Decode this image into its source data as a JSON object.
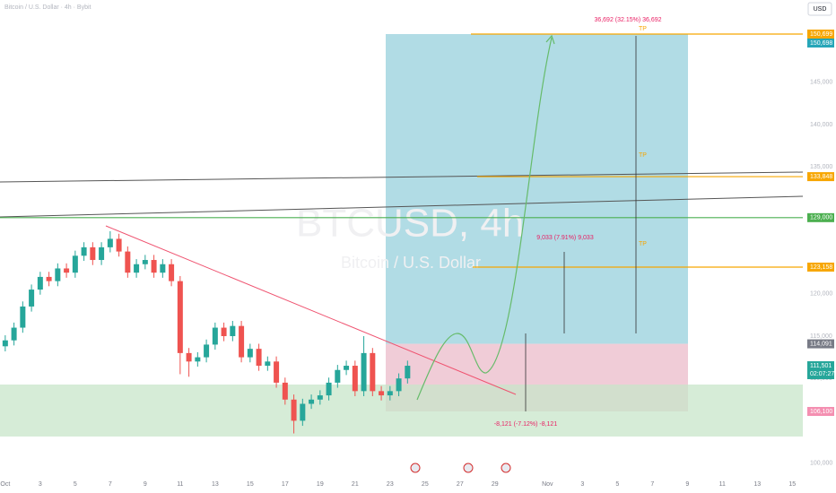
{
  "chart_data": {
    "type": "candlestick",
    "legend": "Bitcoin / U.S. Dollar · 4h · Bybit",
    "watermark": "BTCUSD, 4h",
    "watermark_sub": "Bitcoin / U.S. Dollar",
    "currency": "USD",
    "countdown": "02:07:27",
    "up_color": "#26a69a",
    "down_color": "#ef5350",
    "xlim": [
      -0.3,
      45.6
    ],
    "ylim": [
      96460,
      154725
    ],
    "xticks": [
      {
        "value": 0,
        "label": "Oct"
      },
      {
        "value": 2,
        "label": "3"
      },
      {
        "value": 4,
        "label": "5"
      },
      {
        "value": 6,
        "label": "7"
      },
      {
        "value": 8,
        "label": "9"
      },
      {
        "value": 10,
        "label": "11"
      },
      {
        "value": 12,
        "label": "13"
      },
      {
        "value": 14,
        "label": "15"
      },
      {
        "value": 16,
        "label": "17"
      },
      {
        "value": 18,
        "label": "19"
      },
      {
        "value": 20,
        "label": "21"
      },
      {
        "value": 22,
        "label": "23"
      },
      {
        "value": 24,
        "label": "25"
      },
      {
        "value": 26,
        "label": "27"
      },
      {
        "value": 28,
        "label": "29"
      },
      {
        "value": 31,
        "label": "Nov"
      },
      {
        "value": 33,
        "label": "3"
      },
      {
        "value": 35,
        "label": "5"
      },
      {
        "value": 37,
        "label": "7"
      },
      {
        "value": 39,
        "label": "9"
      },
      {
        "value": 41,
        "label": "11"
      },
      {
        "value": 43,
        "label": "13"
      },
      {
        "value": 45,
        "label": "15"
      }
    ],
    "yticks": [
      {
        "value": 145000,
        "label": "145,000"
      },
      {
        "value": 140000,
        "label": "140,000"
      },
      {
        "value": 135000,
        "label": "135,000"
      },
      {
        "value": 120000,
        "label": "120,000"
      },
      {
        "value": 115000,
        "label": "115,000"
      },
      {
        "value": 110000,
        "label": "110,000"
      },
      {
        "value": 100000,
        "label": "100,000"
      }
    ],
    "candles": {
      "x": [
        0,
        0.5,
        1,
        1.5,
        2,
        2.5,
        3,
        3.5,
        4,
        4.5,
        5,
        5.5,
        6,
        6.5,
        7,
        7.5,
        8,
        8.5,
        9,
        9.5,
        10,
        10.5,
        11,
        11.5,
        12,
        12.5,
        13,
        13.5,
        14,
        14.5,
        15,
        15.5,
        16,
        16.5,
        17,
        17.5,
        18,
        18.5,
        19,
        19.5,
        20,
        20.5,
        21,
        21.5,
        22,
        22.5,
        23
      ],
      "ohlc": [
        [
          113800,
          115100,
          113200,
          114500
        ],
        [
          114500,
          116600,
          113900,
          116000
        ],
        [
          116000,
          119100,
          115400,
          118500
        ],
        [
          118500,
          121100,
          117900,
          120500
        ],
        [
          120500,
          122600,
          119900,
          122000
        ],
        [
          122000,
          122600,
          120900,
          121500
        ],
        [
          121500,
          123600,
          120900,
          123000
        ],
        [
          123000,
          123600,
          121900,
          122500
        ],
        [
          122500,
          125100,
          121900,
          124500
        ],
        [
          124500,
          126100,
          123900,
          125500
        ],
        [
          125500,
          126100,
          123400,
          124000
        ],
        [
          124000,
          126100,
          123400,
          125500
        ],
        [
          125500,
          127400,
          124900,
          126500
        ],
        [
          126500,
          127100,
          124400,
          125000
        ],
        [
          125000,
          125600,
          121900,
          122500
        ],
        [
          122500,
          124100,
          121900,
          123500
        ],
        [
          123500,
          124600,
          122900,
          124000
        ],
        [
          124000,
          124600,
          121900,
          122500
        ],
        [
          122500,
          124100,
          121900,
          123500
        ],
        [
          123500,
          124100,
          120900,
          121500
        ],
        [
          121500,
          122100,
          110500,
          113000
        ],
        [
          113000,
          113600,
          110200,
          112000
        ],
        [
          112000,
          113100,
          111400,
          112500
        ],
        [
          112500,
          114600,
          111900,
          114000
        ],
        [
          114000,
          116600,
          113400,
          116000
        ],
        [
          116000,
          116600,
          114400,
          115000
        ],
        [
          115000,
          116800,
          114400,
          116200
        ],
        [
          116200,
          116800,
          111900,
          112500
        ],
        [
          112500,
          114100,
          111900,
          113500
        ],
        [
          113500,
          114100,
          110900,
          111500
        ],
        [
          111500,
          112600,
          110900,
          112000
        ],
        [
          112000,
          112600,
          108900,
          109500
        ],
        [
          109500,
          110100,
          106900,
          107500
        ],
        [
          107500,
          108100,
          103500,
          105000
        ],
        [
          105000,
          107600,
          104400,
          107000
        ],
        [
          107000,
          108100,
          106400,
          107500
        ],
        [
          107500,
          108600,
          106900,
          108000
        ],
        [
          108000,
          110100,
          107400,
          109500
        ],
        [
          109500,
          111600,
          108900,
          111000
        ],
        [
          111000,
          112100,
          110400,
          111500
        ],
        [
          111500,
          112100,
          107900,
          108500
        ],
        [
          108500,
          115000,
          107900,
          113000
        ],
        [
          113000,
          113600,
          107900,
          108500
        ],
        [
          108500,
          109100,
          107400,
          108000
        ],
        [
          108000,
          109100,
          107400,
          108500
        ],
        [
          108500,
          110600,
          107900,
          110000
        ],
        [
          110000,
          112100,
          109400,
          111500
        ]
      ]
    },
    "price_labels": [
      {
        "value": 150699,
        "label": "150,699",
        "color": "#f7a600"
      },
      {
        "value": 150698,
        "label": "150,698",
        "color": "#26a6b8"
      },
      {
        "value": 133848,
        "label": "133,848",
        "color": "#f7a600"
      },
      {
        "value": 129000,
        "label": "129,000",
        "color": "#4caf50"
      },
      {
        "value": 123158,
        "label": "123,158",
        "color": "#f7a600"
      },
      {
        "value": 114091,
        "label": "114,091",
        "color": "#787b86"
      },
      {
        "value": 111501,
        "label": "111,501",
        "color": "#26a69a"
      },
      {
        "value": 106100,
        "label": "106,100",
        "color": "#f48fb1"
      }
    ],
    "annotations": {
      "target": "36,692 (32.15%) 36,692",
      "mid": "9,033 (7.91%) 9,033",
      "stop": "-8,121 (-7.12%) -8,121",
      "tp": "TP"
    }
  }
}
